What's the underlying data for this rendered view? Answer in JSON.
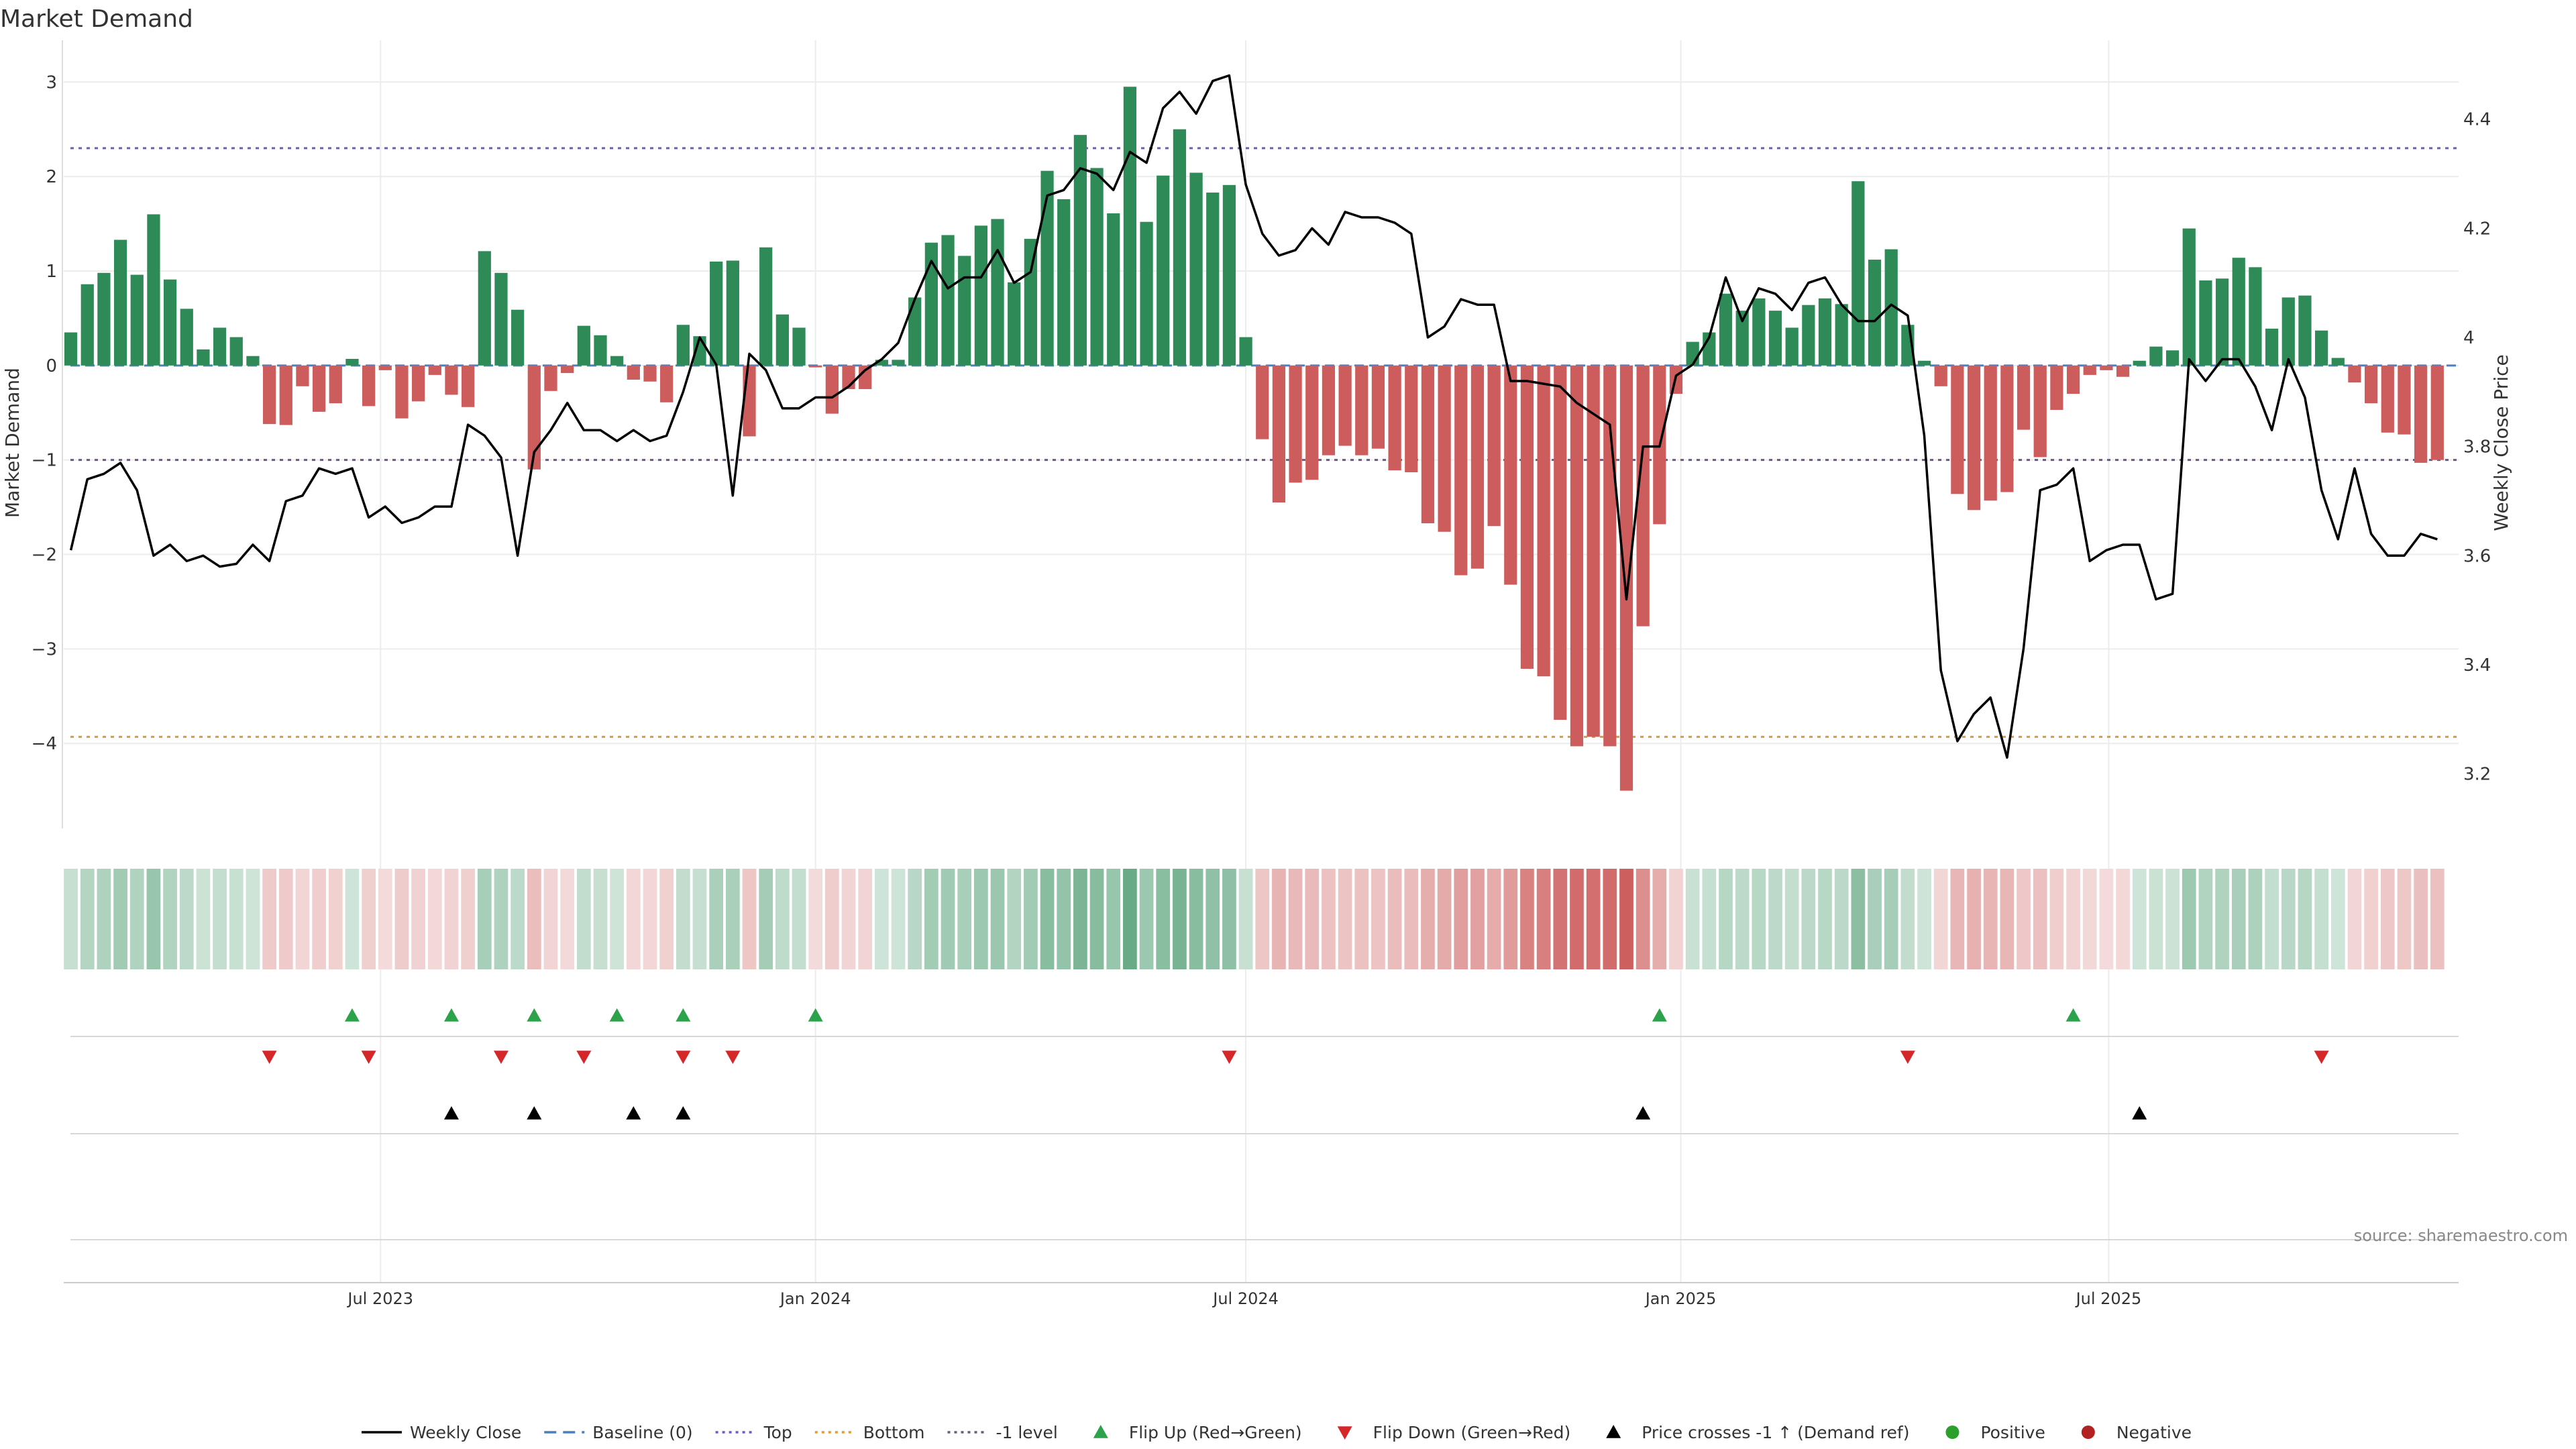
{
  "title": "Market Demand",
  "source": "source: sharemaestro.com",
  "colors": {
    "positive": "#2e8b57",
    "negative": "#cd5c5c",
    "price": "#000000",
    "top": "#6a5acd",
    "bottom": "#e69a2e",
    "neg1": "#6b5b7b",
    "baseline": "#4a7fc1",
    "flip_up": "#2ca24a",
    "flip_down": "#d62728",
    "cross": "#000000",
    "pos_dot": "#2ca02c",
    "neg_dot": "#b22222"
  },
  "legend": [
    {
      "label": "Weekly Close",
      "kind": "line",
      "color": "#000000",
      "dash": ""
    },
    {
      "label": "Baseline (0)",
      "kind": "line",
      "color": "#4a7fc1",
      "dash": "18,10"
    },
    {
      "label": "Top",
      "kind": "line",
      "color": "#6a5acd",
      "dash": "4,6"
    },
    {
      "label": "Bottom",
      "kind": "line",
      "color": "#e69a2e",
      "dash": "4,6"
    },
    {
      "label": "-1 level",
      "kind": "line",
      "color": "#6b5b7b",
      "dash": "4,6"
    },
    {
      "label": "Flip Up (Red→Green)",
      "kind": "tri-up",
      "color": "#2ca24a"
    },
    {
      "label": "Flip Down (Green→Red)",
      "kind": "tri-down",
      "color": "#d62728"
    },
    {
      "label": "Price crosses -1 ↑ (Demand ref)",
      "kind": "tri-up",
      "color": "#000000"
    },
    {
      "label": "Positive",
      "kind": "dot",
      "color": "#2ca02c"
    },
    {
      "label": "Negative",
      "kind": "dot",
      "color": "#b22222"
    }
  ],
  "chart_data": {
    "type": "bar",
    "title": "Market Demand",
    "ylabel": "Market Demand",
    "y2label": "Weekly Close Price",
    "ylim": [
      -4.9,
      3.3
    ],
    "y2lim": [
      3.1,
      4.52
    ],
    "yticks": [
      3,
      2,
      1,
      0,
      -1,
      -2,
      -3,
      -4
    ],
    "ytick_labels": [
      "3",
      "2",
      "1",
      "0",
      "−1",
      "−2",
      "−3",
      "−4"
    ],
    "y2ticks": [
      4.4,
      4.2,
      4.0,
      3.8,
      3.6,
      3.4,
      3.2
    ],
    "y2tick_labels": [
      "4.4",
      "4.2",
      "4",
      "3.8",
      "3.6",
      "3.4",
      "3.2"
    ],
    "x_start": "2023-02-20",
    "x_step_days": 7,
    "x_range": [
      "2023-02-17",
      "2025-11-26"
    ],
    "xticks": [
      {
        "label": "Jul 2023",
        "date": "2023-07-01"
      },
      {
        "label": "Jan 2024",
        "date": "2024-01-01"
      },
      {
        "label": "Jul 2024",
        "date": "2024-07-01"
      },
      {
        "label": "Jan 2025",
        "date": "2025-01-01"
      },
      {
        "label": "Jul 2025",
        "date": "2025-07-01"
      }
    ],
    "reference_lines": {
      "top": 2.3,
      "bottom": -3.93,
      "neg1": -1.0,
      "baseline": 0
    },
    "demand": [
      0.35,
      0.86,
      0.98,
      1.33,
      0.96,
      1.6,
      0.91,
      0.6,
      0.17,
      0.4,
      0.3,
      0.1,
      -0.62,
      -0.63,
      -0.22,
      -0.49,
      -0.4,
      0.07,
      -0.43,
      -0.05,
      -0.56,
      -0.38,
      -0.1,
      -0.31,
      -0.44,
      1.21,
      0.98,
      0.59,
      -1.1,
      -0.27,
      -0.08,
      0.42,
      0.32,
      0.1,
      -0.15,
      -0.17,
      -0.39,
      0.43,
      0.31,
      1.1,
      1.11,
      -0.75,
      1.25,
      0.54,
      0.4,
      -0.02,
      -0.51,
      -0.25,
      -0.25,
      0.06,
      0.06,
      0.72,
      1.3,
      1.38,
      1.16,
      1.48,
      1.55,
      0.88,
      1.34,
      2.06,
      1.76,
      2.44,
      2.09,
      1.61,
      2.95,
      1.52,
      2.01,
      2.5,
      2.04,
      1.83,
      1.91,
      0.3,
      -0.78,
      -1.45,
      -1.24,
      -1.21,
      -0.95,
      -0.85,
      -0.95,
      -0.88,
      -1.11,
      -1.13,
      -1.67,
      -1.76,
      -2.22,
      -2.15,
      -1.7,
      -2.32,
      -3.21,
      -3.29,
      -3.75,
      -4.03,
      -3.93,
      -4.03,
      -4.5,
      -2.76,
      -1.68,
      -0.3,
      0.25,
      0.35,
      0.76,
      0.58,
      0.71,
      0.58,
      0.4,
      0.64,
      0.71,
      0.65,
      1.95,
      1.12,
      1.23,
      0.43,
      0.05,
      -0.22,
      -1.36,
      -1.53,
      -1.43,
      -1.34,
      -0.68,
      -0.97,
      -0.47,
      -0.3,
      -0.1,
      -0.05,
      -0.12,
      0.05,
      0.2,
      0.16,
      1.45,
      0.9,
      0.92,
      1.14,
      1.04,
      0.39,
      0.72,
      0.74,
      0.37,
      0.08,
      -0.18,
      -0.4,
      -0.71,
      -0.73,
      -1.03,
      -1.0
    ],
    "price": [
      3.61,
      3.74,
      3.75,
      3.77,
      3.72,
      3.6,
      3.62,
      3.59,
      3.6,
      3.58,
      3.585,
      3.62,
      3.59,
      3.7,
      3.71,
      3.76,
      3.75,
      3.76,
      3.67,
      3.69,
      3.66,
      3.67,
      3.69,
      3.69,
      3.84,
      3.82,
      3.78,
      3.6,
      3.79,
      3.83,
      3.88,
      3.83,
      3.83,
      3.81,
      3.83,
      3.81,
      3.82,
      3.9,
      4.0,
      3.95,
      3.71,
      3.97,
      3.94,
      3.87,
      3.87,
      3.89,
      3.89,
      3.91,
      3.94,
      3.96,
      3.99,
      4.07,
      4.14,
      4.09,
      4.11,
      4.11,
      4.16,
      4.1,
      4.12,
      4.26,
      4.27,
      4.31,
      4.3,
      4.27,
      4.34,
      4.32,
      4.42,
      4.45,
      4.41,
      4.47,
      4.48,
      4.28,
      4.19,
      4.15,
      4.16,
      4.2,
      4.17,
      4.23,
      4.22,
      4.22,
      4.21,
      4.19,
      4.0,
      4.02,
      4.07,
      4.06,
      4.06,
      3.92,
      3.92,
      3.915,
      3.91,
      3.88,
      3.86,
      3.84,
      3.52,
      3.8,
      3.8,
      3.93,
      3.95,
      4.0,
      4.11,
      4.03,
      4.09,
      4.08,
      4.05,
      4.1,
      4.11,
      4.06,
      4.03,
      4.03,
      4.06,
      4.04,
      3.82,
      3.39,
      3.26,
      3.31,
      3.34,
      3.23,
      3.43,
      3.72,
      3.73,
      3.76,
      3.59,
      3.61,
      3.62,
      3.62,
      3.52,
      3.53,
      3.96,
      3.92,
      3.96,
      3.96,
      3.91,
      3.83,
      3.96,
      3.89,
      3.72,
      3.63,
      3.76,
      3.64,
      3.6,
      3.6,
      3.64,
      3.63
    ],
    "flip_up": [
      "2023-06-19",
      "2023-07-31",
      "2023-09-04",
      "2023-10-09",
      "2023-11-06",
      "2024-01-01",
      "2024-12-23",
      "2025-06-16"
    ],
    "flip_down": [
      "2023-05-15",
      "2023-06-26",
      "2023-08-21",
      "2023-09-25",
      "2023-11-06",
      "2023-11-27",
      "2024-06-24",
      "2025-04-07",
      "2025-09-29"
    ],
    "price_cross": [
      "2023-07-31",
      "2023-09-04",
      "2023-10-16",
      "2023-11-06",
      "2024-12-16",
      "2025-07-14"
    ]
  }
}
